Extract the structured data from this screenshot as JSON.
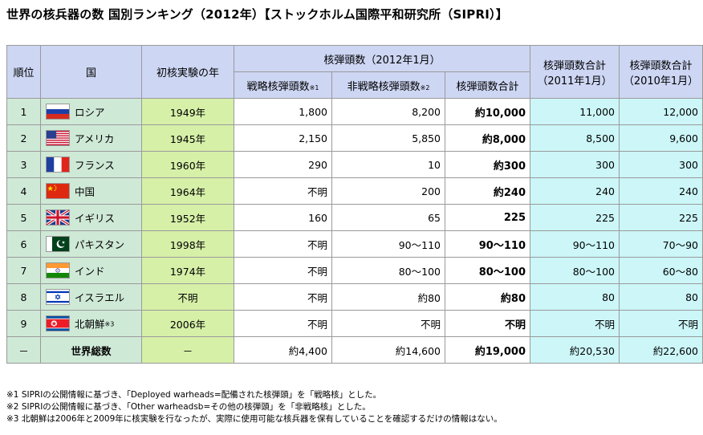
{
  "title": "世界の核兵器の数 国別ランキング（2012年）【ストックホルム国際平和研究所（SIPRI）】",
  "headers": {
    "rank": "順位",
    "country": "国",
    "first_test": "初核実験の年",
    "group": "核弾頭数（2012年1月）",
    "strategic": "戦略核弾頭数",
    "strategic_note": "※1",
    "nonstrategic": "非戦略核弾頭数",
    "nonstrategic_note": "※2",
    "total": "核弾頭数合計",
    "total2011_line1": "核弾頭数合計",
    "total2011_line2": "（2011年1月）",
    "total2010_line1": "核弾頭数合計",
    "total2010_line2": "（2010年1月）"
  },
  "rows": [
    {
      "rank": "1",
      "flag": "russia-flag-icon",
      "country": "ロシア",
      "year": "1949年",
      "strategic": "1,800",
      "nonstrategic": "8,200",
      "total": "約10,000",
      "y2011": "11,000",
      "y2010": "12,000"
    },
    {
      "rank": "2",
      "flag": "usa-flag-icon",
      "country": "アメリカ",
      "year": "1945年",
      "strategic": "2,150",
      "nonstrategic": "5,850",
      "total": "約8,000",
      "y2011": "8,500",
      "y2010": "9,600"
    },
    {
      "rank": "3",
      "flag": "france-flag-icon",
      "country": "フランス",
      "year": "1960年",
      "strategic": "290",
      "nonstrategic": "10",
      "total": "約300",
      "y2011": "300",
      "y2010": "300"
    },
    {
      "rank": "4",
      "flag": "china-flag-icon",
      "country": "中国",
      "year": "1964年",
      "strategic": "不明",
      "nonstrategic": "200",
      "total": "約240",
      "y2011": "240",
      "y2010": "240"
    },
    {
      "rank": "5",
      "flag": "uk-flag-icon",
      "country": "イギリス",
      "year": "1952年",
      "strategic": "160",
      "nonstrategic": "65",
      "total": "225",
      "y2011": "225",
      "y2010": "225"
    },
    {
      "rank": "6",
      "flag": "pakistan-flag-icon",
      "country": "パキスタン",
      "year": "1998年",
      "strategic": "不明",
      "nonstrategic": "90～110",
      "total": "90～110",
      "y2011": "90～110",
      "y2010": "70～90"
    },
    {
      "rank": "7",
      "flag": "india-flag-icon",
      "country": "インド",
      "year": "1974年",
      "strategic": "不明",
      "nonstrategic": "80～100",
      "total": "80～100",
      "y2011": "80～100",
      "y2010": "60～80"
    },
    {
      "rank": "8",
      "flag": "israel-flag-icon",
      "country": "イスラエル",
      "year": "不明",
      "strategic": "不明",
      "nonstrategic": "約80",
      "total": "約80",
      "y2011": "80",
      "y2010": "80"
    },
    {
      "rank": "9",
      "flag": "north-korea-flag-icon",
      "country": "北朝鮮",
      "country_note": "※3",
      "year": "2006年",
      "strategic": "不明",
      "nonstrategic": "不明",
      "total": "不明",
      "y2011": "不明",
      "y2010": "不明"
    }
  ],
  "world": {
    "rank": "－",
    "label": "世界総数",
    "year": "－",
    "strategic": "約4,400",
    "nonstrategic": "約14,600",
    "total": "約19,000",
    "y2011": "約20,530",
    "y2010": "約22,600"
  },
  "footnotes": [
    "※1 SIPRIの公開情報に基づき、「Deployed warheads=配備された核弾頭」を「戦略核」とした。",
    "※2 SIPRIの公開情報に基づき、「Other warheadsb=その他の核弾頭」を「非戦略核」とした。",
    "※3 北朝鮮は2006年と2009年に核実験を行なったが、実際に使用可能な核兵器を保有していることを確認するだけの情報はない。"
  ],
  "colors": {
    "header_bg": "#cdd6f3",
    "rank_country_bg": "#cfe9d7",
    "year_bg": "#d6f0a8",
    "history_bg": "#ccf6f8",
    "border": "#9a9a9a"
  }
}
